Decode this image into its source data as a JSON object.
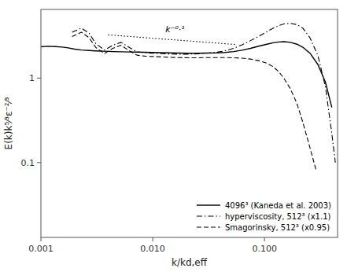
{
  "chart_data": {
    "type": "line",
    "xlabel": "k/kd,eff",
    "ylabel": "E(k)k⁵⁄³ε⁻²⁄³",
    "log": true,
    "grid": false,
    "legend": "lower right",
    "xlim": [
      0.001,
      0.45
    ],
    "ylim": [
      0.013,
      6.5
    ],
    "xticks": [
      0.001,
      {
        "value": 0.01,
        "label": "0.010"
      },
      {
        "value": 0.1,
        "label": "0.100"
      }
    ],
    "yticks": [
      0.1,
      1
    ],
    "annotations": [
      {
        "text": "k⁻⁰·¹",
        "x": 0.013,
        "y": 3.5
      }
    ],
    "series": [
      {
        "name": "4096³ (Kaneda et al. 2003)",
        "color": "#000000",
        "line_style": "solid",
        "x": [
          0.001,
          0.00115,
          0.00135,
          0.00155,
          0.00175,
          0.002,
          0.0023,
          0.0027,
          0.0031,
          0.0037,
          0.0044,
          0.0052,
          0.0062,
          0.0072,
          0.0085,
          0.01,
          0.012,
          0.014,
          0.017,
          0.021,
          0.025,
          0.03,
          0.037,
          0.044,
          0.053,
          0.063,
          0.075,
          0.09,
          0.105,
          0.12,
          0.135,
          0.15,
          0.17,
          0.195,
          0.22,
          0.255,
          0.3,
          0.35,
          0.4
        ],
        "values": [
          2.35,
          2.38,
          2.36,
          2.33,
          2.28,
          2.2,
          2.15,
          2.12,
          2.1,
          2.08,
          2.06,
          2.05,
          2.04,
          2.03,
          2.02,
          2.01,
          2.0,
          1.99,
          1.98,
          1.97,
          1.97,
          1.98,
          1.99,
          2.01,
          2.06,
          2.14,
          2.25,
          2.4,
          2.52,
          2.62,
          2.68,
          2.7,
          2.65,
          2.52,
          2.32,
          1.97,
          1.45,
          0.9,
          0.45
        ]
      },
      {
        "name": "hyperviscosity, 512³ (x1.1)",
        "color": "#000000",
        "line_style": "dashdot",
        "x": [
          0.0019,
          0.0023,
          0.0027,
          0.0031,
          0.0037,
          0.0044,
          0.0052,
          0.0062,
          0.0072,
          0.0085,
          0.01,
          0.012,
          0.014,
          0.017,
          0.021,
          0.025,
          0.03,
          0.037,
          0.044,
          0.053,
          0.063,
          0.075,
          0.09,
          0.105,
          0.12,
          0.135,
          0.15,
          0.17,
          0.195,
          0.22,
          0.255,
          0.3,
          0.35,
          0.4,
          0.43
        ],
        "values": [
          3.5,
          3.9,
          3.4,
          2.55,
          2.15,
          2.45,
          2.65,
          2.3,
          2.05,
          2.0,
          1.97,
          1.95,
          1.93,
          1.92,
          1.92,
          1.94,
          1.97,
          2.02,
          2.1,
          2.25,
          2.48,
          2.78,
          3.15,
          3.55,
          3.9,
          4.2,
          4.4,
          4.45,
          4.3,
          3.9,
          3.0,
          1.85,
          0.8,
          0.22,
          0.1
        ]
      },
      {
        "name": "Smagorinsky, 512³ (x0.95)",
        "color": "#000000",
        "line_style": "dashed",
        "x": [
          0.0019,
          0.0023,
          0.0027,
          0.0031,
          0.0037,
          0.0044,
          0.0052,
          0.0062,
          0.0072,
          0.0085,
          0.01,
          0.012,
          0.014,
          0.017,
          0.021,
          0.025,
          0.03,
          0.037,
          0.044,
          0.053,
          0.063,
          0.075,
          0.09,
          0.105,
          0.12,
          0.135,
          0.15,
          0.17,
          0.195,
          0.22,
          0.255,
          0.29
        ],
        "values": [
          3.1,
          3.5,
          3.0,
          2.3,
          1.95,
          2.25,
          2.45,
          2.1,
          1.87,
          1.82,
          1.8,
          1.78,
          1.76,
          1.75,
          1.74,
          1.74,
          1.75,
          1.75,
          1.75,
          1.74,
          1.72,
          1.68,
          1.6,
          1.5,
          1.36,
          1.18,
          0.98,
          0.75,
          0.5,
          0.3,
          0.15,
          0.08
        ]
      },
      {
        "color": "#000000",
        "line_style": "dotted",
        "x": [
          0.004,
          0.055
        ],
        "values": [
          3.25,
          2.50065
        ]
      }
    ]
  }
}
